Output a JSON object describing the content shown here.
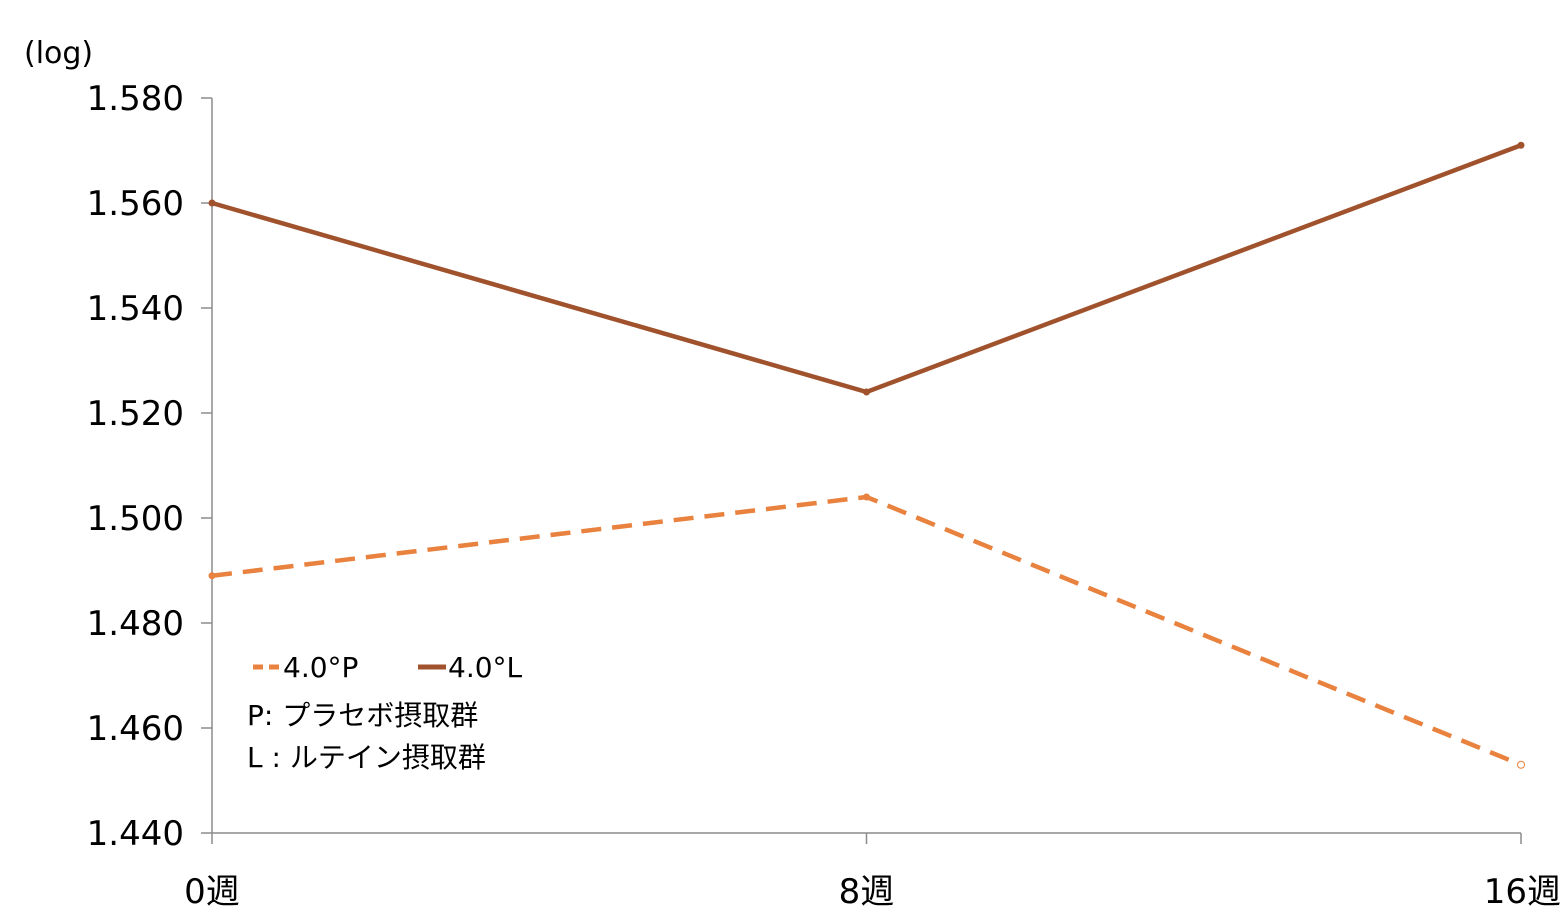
{
  "chart_data": {
    "type": "line",
    "unit_label": "(log)",
    "categories": [
      "0週",
      "8週",
      "16週"
    ],
    "series": [
      {
        "name": "4.0°P",
        "values": [
          1.489,
          1.504,
          1.453
        ],
        "color": "#E8823E",
        "dash": "dashed"
      },
      {
        "name": "4.0°L",
        "values": [
          1.56,
          1.524,
          1.571
        ],
        "color": "#A0522D",
        "dash": "solid"
      }
    ],
    "ylim": [
      1.44,
      1.58
    ],
    "yticks": [
      "1.580",
      "1.560",
      "1.540",
      "1.520",
      "1.500",
      "1.480",
      "1.460",
      "1.440"
    ],
    "ytick_values": [
      1.58,
      1.56,
      1.54,
      1.52,
      1.5,
      1.48,
      1.46,
      1.44
    ],
    "grid": false,
    "legend_position": "bottom-left",
    "legend_notes": [
      "P: プラセボ摂取群",
      "L : ルテイン摂取群"
    ]
  }
}
